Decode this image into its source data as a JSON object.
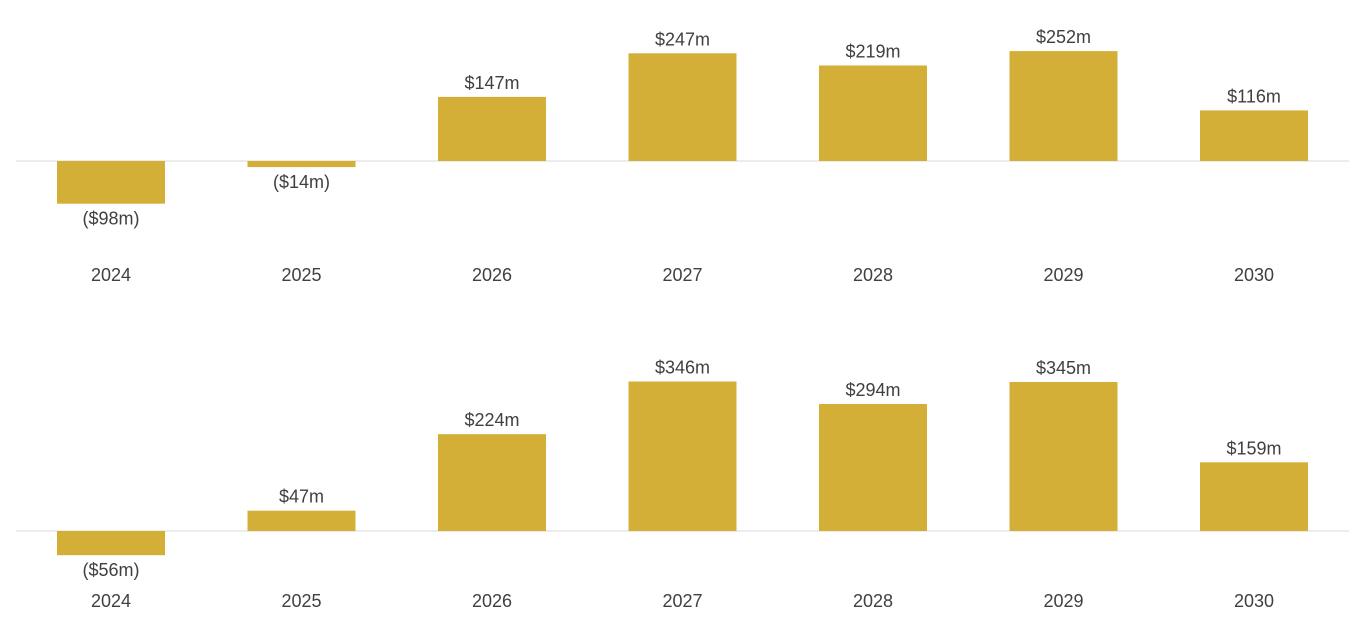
{
  "chart_data": [
    {
      "type": "bar",
      "categories": [
        "2024",
        "2025",
        "2026",
        "2027",
        "2028",
        "2029",
        "2030"
      ],
      "values": [
        -98,
        -14,
        147,
        247,
        219,
        252,
        116
      ],
      "value_labels": [
        "($98m)",
        "($14m)",
        "$147m",
        "$247m",
        "$219m",
        "$252m",
        "$116m"
      ],
      "title": "",
      "xlabel": "",
      "ylabel": "",
      "ylim": [
        -98,
        252
      ],
      "grid": false,
      "legend": "none",
      "bar_color": "#D4AF37",
      "baseline_color": "#D9D9D9",
      "text_color": "#404040"
    },
    {
      "type": "bar",
      "categories": [
        "2024",
        "2025",
        "2026",
        "2027",
        "2028",
        "2029",
        "2030"
      ],
      "values": [
        -56,
        47,
        224,
        346,
        294,
        345,
        159
      ],
      "value_labels": [
        "($56m)",
        "$47m",
        "$224m",
        "$346m",
        "$294m",
        "$345m",
        "$159m"
      ],
      "title": "",
      "xlabel": "",
      "ylabel": "",
      "ylim": [
        -56,
        346
      ],
      "grid": false,
      "legend": "none",
      "bar_color": "#D4AF37",
      "baseline_color": "#D9D9D9",
      "text_color": "#404040"
    }
  ]
}
